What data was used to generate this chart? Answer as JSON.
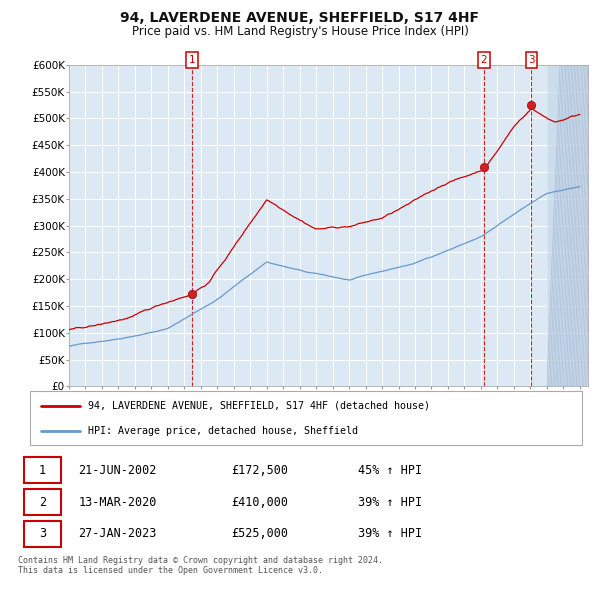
{
  "title": "94, LAVERDENE AVENUE, SHEFFIELD, S17 4HF",
  "subtitle": "Price paid vs. HM Land Registry's House Price Index (HPI)",
  "y_ticks": [
    0,
    50000,
    100000,
    150000,
    200000,
    250000,
    300000,
    350000,
    400000,
    450000,
    500000,
    550000,
    600000
  ],
  "y_tick_labels": [
    "£0",
    "£50K",
    "£100K",
    "£150K",
    "£200K",
    "£250K",
    "£300K",
    "£350K",
    "£400K",
    "£450K",
    "£500K",
    "£550K",
    "£600K"
  ],
  "sale_year_vals": [
    2002.46,
    2020.19,
    2023.07
  ],
  "sale_prices": [
    172500,
    410000,
    525000
  ],
  "sale_labels": [
    "1",
    "2",
    "3"
  ],
  "legend_red_label": "94, LAVERDENE AVENUE, SHEFFIELD, S17 4HF (detached house)",
  "legend_blue_label": "HPI: Average price, detached house, Sheffield",
  "table_rows": [
    {
      "num": "1",
      "date": "21-JUN-2002",
      "price": "£172,500",
      "pct": "45% ↑ HPI"
    },
    {
      "num": "2",
      "date": "13-MAR-2020",
      "price": "£410,000",
      "pct": "39% ↑ HPI"
    },
    {
      "num": "3",
      "date": "27-JAN-2023",
      "price": "£525,000",
      "pct": "39% ↑ HPI"
    }
  ],
  "footer": "Contains HM Land Registry data © Crown copyright and database right 2024.\nThis data is licensed under the Open Government Licence v3.0.",
  "bg_color": "#dce9f5",
  "grid_color": "#ffffff",
  "red_line_color": "#cc0000",
  "blue_line_color": "#6699cc"
}
